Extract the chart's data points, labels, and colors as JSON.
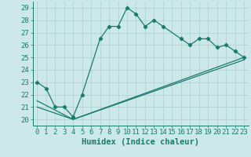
{
  "xlabel": "Humidex (Indice chaleur)",
  "bg_color": "#cce8e8",
  "line_color": "#1a7a6e",
  "grid_color": "#aacfcf",
  "xlim": [
    -0.5,
    23.5
  ],
  "ylim": [
    19.5,
    29.5
  ],
  "yticks": [
    20,
    21,
    22,
    23,
    24,
    25,
    26,
    27,
    28,
    29
  ],
  "xticks": [
    0,
    1,
    2,
    3,
    4,
    5,
    6,
    7,
    8,
    9,
    10,
    11,
    12,
    13,
    14,
    15,
    16,
    17,
    18,
    19,
    20,
    21,
    22,
    23
  ],
  "line1_x": [
    0,
    1,
    2,
    3,
    4,
    5,
    7,
    8,
    9,
    10,
    11,
    12,
    13,
    14,
    16,
    17,
    18,
    19,
    20,
    21,
    22,
    23
  ],
  "line1_y": [
    23,
    22.5,
    21,
    21,
    20.2,
    22,
    26.5,
    27.5,
    27.5,
    29,
    28.5,
    27.5,
    28,
    27.5,
    26.5,
    26,
    26.5,
    26.5,
    25.8,
    26,
    25.5,
    25
  ],
  "line2_x": [
    0,
    4,
    23
  ],
  "line2_y": [
    21.5,
    20,
    25
  ],
  "line3_x": [
    0,
    4,
    23
  ],
  "line3_y": [
    21,
    20,
    24.8
  ],
  "tick_fontsize": 6.5,
  "xlabel_fontsize": 7.5
}
